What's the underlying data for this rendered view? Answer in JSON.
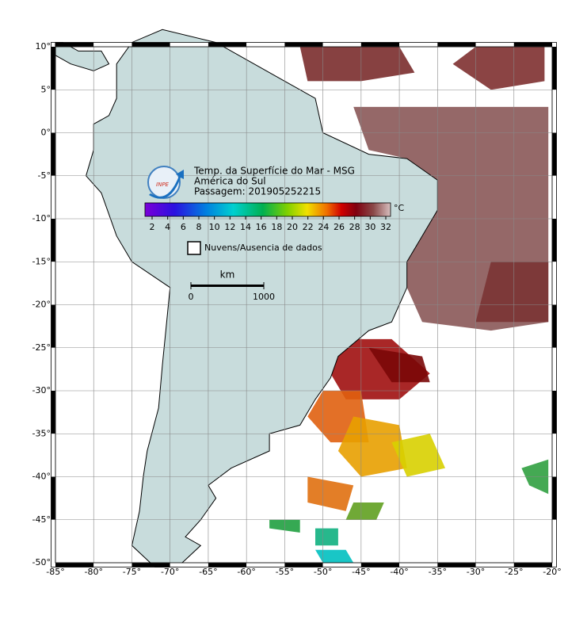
{
  "header": {
    "title_lines": [
      "Temp. da Superfície do Mar - MSG",
      "América do Sul",
      "Passagem: 201905252215"
    ],
    "logo": "INPE"
  },
  "colorbar": {
    "unit": "°C",
    "ticks": [
      2,
      4,
      6,
      8,
      10,
      12,
      14,
      16,
      18,
      20,
      22,
      24,
      26,
      28,
      30,
      32
    ]
  },
  "legend": {
    "label": "Nuvens/Ausencia de dados"
  },
  "scale_bar": {
    "unit": "km",
    "start": "0",
    "end": "1000"
  },
  "map": {
    "lon_ticks": [
      {
        "value": -85,
        "label": "-85°"
      },
      {
        "value": -80,
        "label": "-80°"
      },
      {
        "value": -75,
        "label": "-75°"
      },
      {
        "value": -70,
        "label": "-70°"
      },
      {
        "value": -65,
        "label": "-65°"
      },
      {
        "value": -60,
        "label": "-60°"
      },
      {
        "value": -55,
        "label": "-55°"
      },
      {
        "value": -50,
        "label": "-50°"
      },
      {
        "value": -45,
        "label": "-45°"
      },
      {
        "value": -40,
        "label": "-40°"
      },
      {
        "value": -35,
        "label": "-35°"
      },
      {
        "value": -30,
        "label": "-30°"
      },
      {
        "value": -25,
        "label": "-25°"
      },
      {
        "value": -20,
        "label": "-20°"
      }
    ],
    "lat_ticks": [
      {
        "value": 10,
        "label": "10°"
      },
      {
        "value": 5,
        "label": "5°"
      },
      {
        "value": 0,
        "label": "0°"
      },
      {
        "value": -5,
        "label": "-5°"
      },
      {
        "value": -10,
        "label": "-10°"
      },
      {
        "value": -15,
        "label": "-15°"
      },
      {
        "value": -20,
        "label": "-20°"
      },
      {
        "value": -25,
        "label": "-25°"
      },
      {
        "value": -30,
        "label": "-30°"
      },
      {
        "value": -35,
        "label": "-35°"
      },
      {
        "value": -40,
        "label": "-40°"
      },
      {
        "value": -45,
        "label": "-45°"
      },
      {
        "value": -50,
        "label": "-50°"
      }
    ]
  }
}
